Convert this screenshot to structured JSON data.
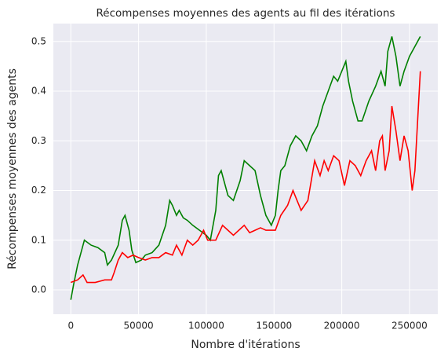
{
  "chart_data": {
    "type": "line",
    "title": "Récompenses moyennes des agents au fil des itérations",
    "xlabel": "Nombre d'itérations",
    "ylabel": "Récompenses moyennes des agents",
    "xlim": [
      -12900,
      270900
    ],
    "ylim": [
      -0.049,
      0.536
    ],
    "xticks": [
      0,
      50000,
      100000,
      150000,
      200000,
      250000
    ],
    "yticks": [
      {
        "value": 0,
        "label": "0.0"
      },
      0.1,
      0.2,
      0.3,
      0.4,
      0.5
    ],
    "grid": true,
    "series": [
      {
        "color": "#008000",
        "x": [
          0,
          2000,
          5000,
          8000,
          10000,
          15000,
          20000,
          25000,
          27000,
          30000,
          35000,
          38000,
          40000,
          43000,
          45000,
          48000,
          52000,
          55000,
          60000,
          65000,
          70000,
          73000,
          75000,
          78000,
          80000,
          83000,
          86000,
          90000,
          95000,
          100000,
          103000,
          107000,
          109000,
          111000,
          113000,
          116000,
          120000,
          125000,
          128000,
          132000,
          136000,
          140000,
          144000,
          148000,
          151000,
          153000,
          155000,
          158000,
          162000,
          166000,
          170000,
          174000,
          178000,
          182000,
          186000,
          190000,
          194000,
          197000,
          200000,
          203000,
          205000,
          208000,
          212000,
          215000,
          220000,
          225000,
          229000,
          232000,
          234000,
          237000,
          240000,
          243000,
          246000,
          250000,
          254000,
          258000
        ],
        "values": [
          -0.02,
          0.01,
          0.05,
          0.08,
          0.1,
          0.09,
          0.085,
          0.075,
          0.05,
          0.06,
          0.09,
          0.14,
          0.15,
          0.12,
          0.08,
          0.055,
          0.06,
          0.07,
          0.075,
          0.09,
          0.13,
          0.18,
          0.17,
          0.15,
          0.16,
          0.145,
          0.14,
          0.13,
          0.12,
          0.11,
          0.1,
          0.16,
          0.23,
          0.24,
          0.22,
          0.19,
          0.18,
          0.22,
          0.26,
          0.25,
          0.24,
          0.19,
          0.15,
          0.13,
          0.15,
          0.2,
          0.24,
          0.25,
          0.29,
          0.31,
          0.3,
          0.28,
          0.31,
          0.33,
          0.37,
          0.4,
          0.43,
          0.42,
          0.44,
          0.46,
          0.42,
          0.38,
          0.34,
          0.34,
          0.38,
          0.41,
          0.44,
          0.41,
          0.48,
          0.51,
          0.47,
          0.41,
          0.44,
          0.47,
          0.49,
          0.51
        ]
      },
      {
        "color": "#ff0000",
        "x": [
          0,
          5000,
          9000,
          12000,
          18000,
          25000,
          30000,
          32000,
          35000,
          38000,
          42000,
          46000,
          50000,
          55000,
          60000,
          65000,
          70000,
          75000,
          78000,
          82000,
          86000,
          90000,
          94000,
          98000,
          101000,
          104000,
          107000,
          112000,
          116000,
          120000,
          124000,
          128000,
          132000,
          136000,
          140000,
          144000,
          148000,
          151000,
          155000,
          160000,
          164000,
          167000,
          170000,
          175000,
          180000,
          184000,
          187000,
          190000,
          194000,
          198000,
          202000,
          206000,
          210000,
          214000,
          218000,
          222000,
          225000,
          228000,
          230000,
          232000,
          235000,
          237000,
          240000,
          243000,
          246000,
          249000,
          252000,
          254000,
          256000,
          258000
        ],
        "values": [
          0.015,
          0.02,
          0.03,
          0.015,
          0.015,
          0.02,
          0.02,
          0.035,
          0.06,
          0.075,
          0.065,
          0.07,
          0.065,
          0.06,
          0.065,
          0.065,
          0.075,
          0.07,
          0.09,
          0.07,
          0.1,
          0.09,
          0.1,
          0.12,
          0.1,
          0.1,
          0.1,
          0.13,
          0.12,
          0.11,
          0.12,
          0.13,
          0.115,
          0.12,
          0.125,
          0.12,
          0.12,
          0.12,
          0.15,
          0.17,
          0.2,
          0.18,
          0.16,
          0.18,
          0.26,
          0.23,
          0.26,
          0.24,
          0.27,
          0.26,
          0.21,
          0.26,
          0.25,
          0.23,
          0.26,
          0.28,
          0.24,
          0.3,
          0.31,
          0.24,
          0.28,
          0.37,
          0.32,
          0.26,
          0.31,
          0.28,
          0.2,
          0.24,
          0.34,
          0.44
        ]
      }
    ]
  }
}
